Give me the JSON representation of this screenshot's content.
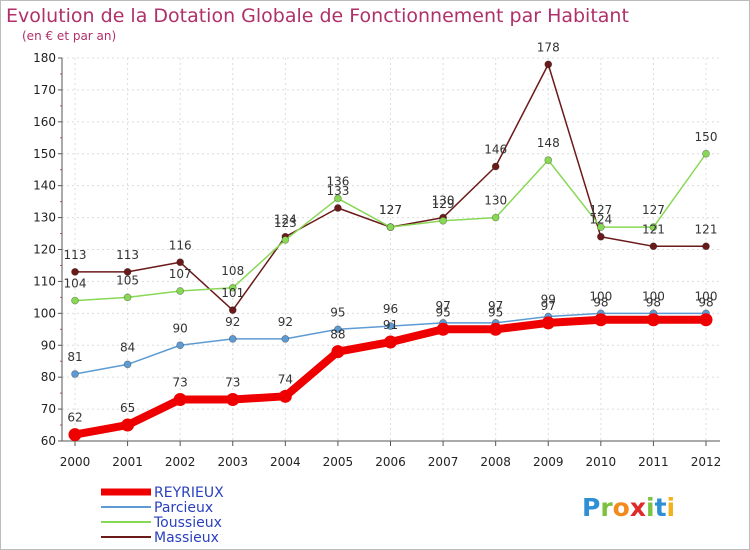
{
  "chart_data": {
    "type": "line",
    "title": "Evolution de la Dotation Globale de Fonctionnement par Habitant",
    "subtitle": "(en € et par an)",
    "xlabel": "",
    "ylabel": "",
    "ylim": [
      60,
      180
    ],
    "yticks": [
      60,
      70,
      80,
      90,
      100,
      110,
      120,
      130,
      140,
      150,
      160,
      170,
      180
    ],
    "x": [
      "2000",
      "2001",
      "2002",
      "2003",
      "2004",
      "2005",
      "2006",
      "2007",
      "2008",
      "2009",
      "2010",
      "2011",
      "2012"
    ],
    "grid": true,
    "legend_position": "bottom-left",
    "series": [
      {
        "name": "Massieux",
        "color": "#6b1a1a",
        "values": [
          113,
          113,
          116,
          101,
          124,
          133,
          127,
          130,
          146,
          178,
          124,
          121,
          121
        ]
      },
      {
        "name": "Toussieux",
        "color": "#88d855",
        "values": [
          104,
          105,
          107,
          108,
          123,
          136,
          127,
          129,
          130,
          148,
          127,
          127,
          150
        ]
      },
      {
        "name": "Parcieux",
        "color": "#5e9bd3",
        "values": [
          81,
          84,
          90,
          92,
          92,
          95,
          96,
          97,
          97,
          99,
          100,
          100,
          100
        ]
      },
      {
        "name": "REYRIEUX",
        "color": "#ee0000",
        "values": [
          62,
          65,
          73,
          73,
          74,
          88,
          91,
          95,
          95,
          97,
          98,
          98,
          98
        ]
      }
    ],
    "legend_order": [
      "REYRIEUX",
      "Parcieux",
      "Toussieux",
      "Massieux"
    ]
  },
  "logo": {
    "letters": [
      "P",
      "r",
      "o",
      "x",
      "i",
      "t",
      "i"
    ],
    "colors": [
      "#2e8fd6",
      "#7cc242",
      "#f28a1d",
      "#e02a2a",
      "#7cc242",
      "#2e8fd6",
      "#f2b21d"
    ]
  }
}
